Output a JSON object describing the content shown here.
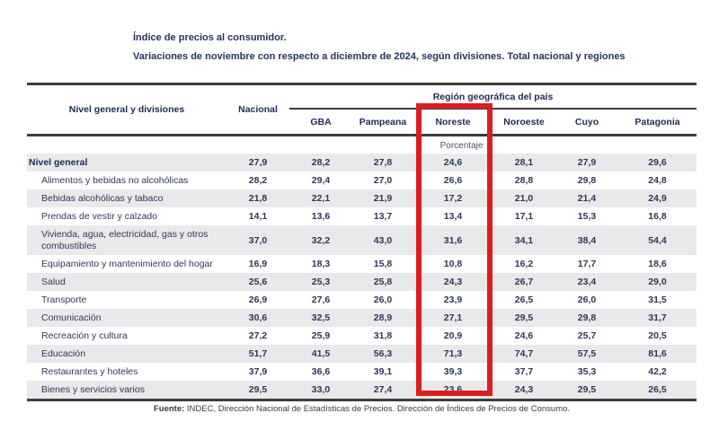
{
  "title": {
    "line1": "Índice de precios al consumidor.",
    "line2": "Variaciones de noviembre con respecto a diciembre de 2024, según divisiones. Total nacional y regiones"
  },
  "table": {
    "col1_header": "Nivel general y divisiones",
    "nacional_header": "Nacional",
    "region_group_header": "Región geográfica del país",
    "region_headers": [
      "GBA",
      "Pampeana",
      "Noreste",
      "Noroeste",
      "Cuyo",
      "Patagonia"
    ],
    "unit_label": "Porcentaje",
    "rows": [
      {
        "label": "Nivel general",
        "bold": true,
        "values": [
          "27,9",
          "28,2",
          "27,8",
          "24,6",
          "28,1",
          "27,9",
          "29,6"
        ]
      },
      {
        "label": "Alimentos y bebidas no alcohólicas",
        "values": [
          "28,2",
          "29,4",
          "27,0",
          "26,6",
          "28,8",
          "29,8",
          "24,8"
        ]
      },
      {
        "label": "Bebidas alcohólicas y tabaco",
        "values": [
          "21,8",
          "22,1",
          "21,9",
          "17,2",
          "21,0",
          "21,4",
          "24,9"
        ]
      },
      {
        "label": "Prendas de vestir y calzado",
        "values": [
          "14,1",
          "13,6",
          "13,7",
          "13,4",
          "17,1",
          "15,3",
          "16,8"
        ]
      },
      {
        "label": "Vivienda, agua, electricidad, gas y otros combustibles",
        "values": [
          "37,0",
          "32,2",
          "43,0",
          "31,6",
          "34,1",
          "38,4",
          "54,4"
        ]
      },
      {
        "label": "Equipamiento y mantenimiento del hogar",
        "values": [
          "16,9",
          "18,3",
          "15,8",
          "10,8",
          "16,2",
          "17,7",
          "18,6"
        ]
      },
      {
        "label": "Salud",
        "values": [
          "25,6",
          "25,3",
          "25,8",
          "24,3",
          "26,7",
          "23,4",
          "29,0"
        ]
      },
      {
        "label": "Transporte",
        "values": [
          "26,9",
          "27,6",
          "26,0",
          "23,9",
          "26,5",
          "26,0",
          "31,5"
        ]
      },
      {
        "label": "Comunicación",
        "values": [
          "30,6",
          "32,5",
          "28,9",
          "27,1",
          "29,5",
          "29,8",
          "31,7"
        ]
      },
      {
        "label": "Recreación y cultura",
        "values": [
          "27,2",
          "25,9",
          "31,8",
          "20,9",
          "24,6",
          "25,7",
          "20,5"
        ]
      },
      {
        "label": "Educación",
        "values": [
          "51,7",
          "41,5",
          "56,3",
          "71,3",
          "74,7",
          "57,5",
          "81,6"
        ]
      },
      {
        "label": "Restaurantes y hoteles",
        "values": [
          "37,9",
          "36,6",
          "39,1",
          "39,3",
          "37,7",
          "35,3",
          "42,2"
        ]
      },
      {
        "label": "Bienes y servicios varios",
        "values": [
          "29,5",
          "33,0",
          "27,4",
          "23,6",
          "24,3",
          "29,5",
          "26,5"
        ]
      }
    ]
  },
  "highlight": {
    "region": "Noreste",
    "color": "#dc1e1e",
    "style": "border-color:#dc1e1e"
  },
  "source": {
    "prefix": "Fuente:",
    "text": " INDEC, Dirección Nacional de Estadísticas de Precios. Dirección de Índices de Precios de Consumo."
  }
}
